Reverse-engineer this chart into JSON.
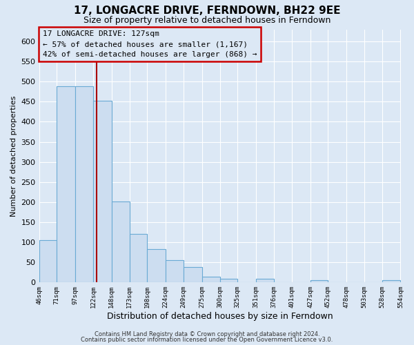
{
  "title": "17, LONGACRE DRIVE, FERNDOWN, BH22 9EE",
  "subtitle": "Size of property relative to detached houses in Ferndown",
  "xlabel": "Distribution of detached houses by size in Ferndown",
  "ylabel": "Number of detached properties",
  "bar_edges": [
    46,
    71,
    97,
    122,
    148,
    173,
    198,
    224,
    249,
    275,
    300,
    325,
    351,
    376,
    401,
    427,
    452,
    478,
    503,
    528,
    554
  ],
  "bar_heights": [
    105,
    488,
    488,
    453,
    201,
    120,
    83,
    55,
    38,
    15,
    10,
    0,
    9,
    0,
    0,
    5,
    0,
    0,
    0,
    5
  ],
  "tick_labels": [
    "46sqm",
    "71sqm",
    "97sqm",
    "122sqm",
    "148sqm",
    "173sqm",
    "198sqm",
    "224sqm",
    "249sqm",
    "275sqm",
    "300sqm",
    "325sqm",
    "351sqm",
    "376sqm",
    "401sqm",
    "427sqm",
    "452sqm",
    "478sqm",
    "503sqm",
    "528sqm",
    "554sqm"
  ],
  "bar_color": "#ccddf0",
  "bar_edge_color": "#6aaad4",
  "property_line_x": 127,
  "property_line_color": "#aa0000",
  "annotation_title": "17 LONGACRE DRIVE: 127sqm",
  "annotation_line1": "← 57% of detached houses are smaller (1,167)",
  "annotation_line2": "42% of semi-detached houses are larger (868) →",
  "annotation_box_edge_color": "#cc0000",
  "ylim": [
    0,
    630
  ],
  "yticks": [
    0,
    50,
    100,
    150,
    200,
    250,
    300,
    350,
    400,
    450,
    500,
    550,
    600
  ],
  "bg_color": "#dce8f5",
  "grid_color": "#ffffff",
  "footer1": "Contains HM Land Registry data © Crown copyright and database right 2024.",
  "footer2": "Contains public sector information licensed under the Open Government Licence v3.0."
}
